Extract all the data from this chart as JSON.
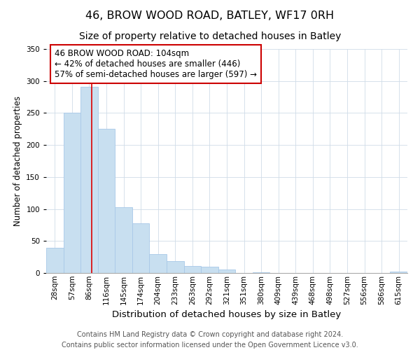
{
  "title": "46, BROW WOOD ROAD, BATLEY, WF17 0RH",
  "subtitle": "Size of property relative to detached houses in Batley",
  "xlabel": "Distribution of detached houses by size in Batley",
  "ylabel": "Number of detached properties",
  "categories": [
    "28sqm",
    "57sqm",
    "86sqm",
    "116sqm",
    "145sqm",
    "174sqm",
    "204sqm",
    "233sqm",
    "263sqm",
    "292sqm",
    "321sqm",
    "351sqm",
    "380sqm",
    "409sqm",
    "439sqm",
    "468sqm",
    "498sqm",
    "527sqm",
    "556sqm",
    "586sqm",
    "615sqm"
  ],
  "values": [
    39,
    250,
    291,
    225,
    103,
    78,
    30,
    19,
    11,
    10,
    5,
    0,
    1,
    0,
    0,
    0,
    0,
    0,
    0,
    0,
    2
  ],
  "bar_color": "#c8dff0",
  "bar_edge_color": "#a8c8e8",
  "highlight_bar_index": 2,
  "highlight_color": "#dd0000",
  "annotation_line1": "46 BROW WOOD ROAD: 104sqm",
  "annotation_line2": "← 42% of detached houses are smaller (446)",
  "annotation_line3": "57% of semi-detached houses are larger (597) →",
  "annotation_box_color": "#ffffff",
  "annotation_box_edge_color": "#cc0000",
  "ylim": [
    0,
    350
  ],
  "yticks": [
    0,
    50,
    100,
    150,
    200,
    250,
    300,
    350
  ],
  "footer_line1": "Contains HM Land Registry data © Crown copyright and database right 2024.",
  "footer_line2": "Contains public sector information licensed under the Open Government Licence v3.0.",
  "title_fontsize": 11.5,
  "subtitle_fontsize": 10,
  "xlabel_fontsize": 9.5,
  "ylabel_fontsize": 8.5,
  "tick_fontsize": 7.5,
  "annotation_fontsize": 8.5,
  "footer_fontsize": 7
}
